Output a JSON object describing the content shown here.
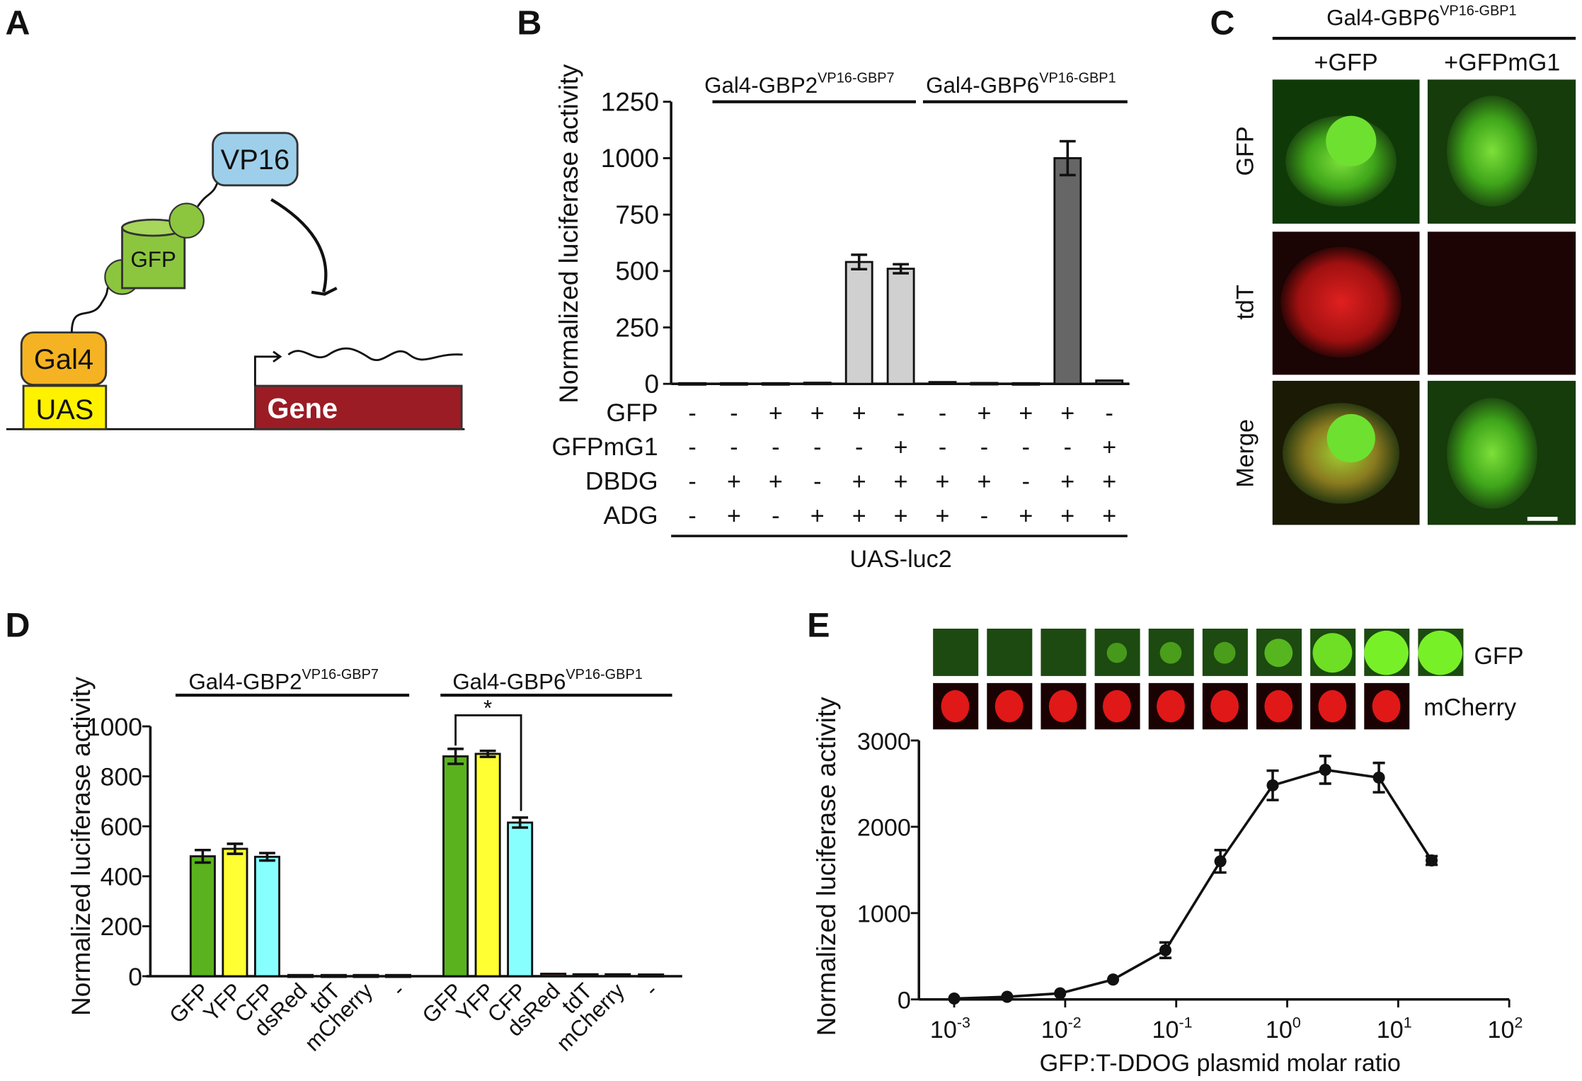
{
  "panels": {
    "a": "A",
    "b": "B",
    "c": "C",
    "d": "D",
    "e": "E"
  },
  "panel_a": {
    "vp16": "VP16",
    "gfp": "GFP",
    "gal4": "Gal4",
    "uas": "UAS",
    "gene": "Gene",
    "colors": {
      "vp16": "#9ecfea",
      "gfp": "#8cc63f",
      "gal4": "#f5b323",
      "uas": "#fff200",
      "gene": "#9b1c24"
    }
  },
  "chart_data": [
    {
      "id": "B",
      "type": "bar",
      "ylabel": "Normalized luciferase activity",
      "ylim": [
        0,
        1250
      ],
      "yticks": [
        0,
        250,
        500,
        750,
        1000,
        1250
      ],
      "group_labels": [
        {
          "name": "Gal4-GBP2",
          "sup": "VP16-GBP7"
        },
        {
          "name": "Gal4-GBP6",
          "sup": "VP16-GBP1"
        }
      ],
      "values": [
        3,
        3,
        3,
        5,
        540,
        510,
        8,
        4,
        3,
        1000,
        15
      ],
      "errors": [
        0,
        0,
        0,
        0,
        32,
        20,
        0,
        0,
        0,
        75,
        0
      ],
      "fills": [
        "#777",
        "#777",
        "#777",
        "#777",
        "#d0d0d0",
        "#d0d0d0",
        "#555",
        "#555",
        "#555",
        "#666",
        "#666"
      ],
      "rows": [
        {
          "label": "GFP",
          "signs": [
            "-",
            "-",
            "+",
            "+",
            "+",
            "-",
            "-",
            "+",
            "+",
            "+",
            "-"
          ]
        },
        {
          "label": "GFPmG1",
          "signs": [
            "-",
            "-",
            "-",
            "-",
            "-",
            "+",
            "-",
            "-",
            "-",
            "-",
            "+"
          ]
        },
        {
          "label": "DBDG",
          "signs": [
            "-",
            "+",
            "+",
            "-",
            "+",
            "+",
            "+",
            "+",
            "-",
            "+",
            "+"
          ]
        },
        {
          "label": "ADG",
          "signs": [
            "-",
            "+",
            "-",
            "+",
            "+",
            "+",
            "+",
            "-",
            "+",
            "+",
            "+"
          ]
        }
      ],
      "footer": "UAS-luc2"
    },
    {
      "id": "D",
      "type": "bar",
      "ylabel": "Normalized luciferase activity",
      "ylim": [
        0,
        1000
      ],
      "yticks": [
        0,
        200,
        400,
        600,
        800,
        1000
      ],
      "group_labels": [
        {
          "name": "Gal4-GBP2",
          "sup": "VP16-GBP7"
        },
        {
          "name": "Gal4-GBP6",
          "sup": "VP16-GBP1"
        }
      ],
      "categories": [
        "GFP",
        "YFP",
        "CFP",
        "dsRed",
        "tdT",
        "mCherry",
        "-",
        "GFP",
        "YFP",
        "CFP",
        "dsRed",
        "tdT",
        "mCherry",
        "-"
      ],
      "values": [
        480,
        510,
        478,
        5,
        5,
        5,
        5,
        880,
        890,
        615,
        10,
        8,
        8,
        7
      ],
      "errors": [
        25,
        20,
        15,
        0,
        0,
        0,
        0,
        30,
        12,
        20,
        0,
        0,
        0,
        0
      ],
      "fills": [
        "#5ab31e",
        "#ffff33",
        "#88ffff",
        "#4a2a2a",
        "#3a2a2a",
        "#333",
        "#333",
        "#5ab31e",
        "#ffff33",
        "#88ffff",
        "#6a2a2a",
        "#5a2a2a",
        "#3a2a2a",
        "#333"
      ],
      "annotation": "*"
    },
    {
      "id": "E",
      "type": "line",
      "ylabel": "Normalized luciferase activity",
      "xlabel": "GFP:T-DDOG plasmid molar ratio",
      "xscale": "log",
      "xlim": [
        0.001,
        100
      ],
      "ylim": [
        0,
        3000
      ],
      "yticks": [
        0,
        1000,
        2000,
        3000
      ],
      "xticks": [
        {
          "base": "10",
          "exp": "-3"
        },
        {
          "base": "10",
          "exp": "-2"
        },
        {
          "base": "10",
          "exp": "-1"
        },
        {
          "base": "10",
          "exp": "0"
        },
        {
          "base": "10",
          "exp": "1"
        },
        {
          "base": "10",
          "exp": "2"
        }
      ],
      "x": [
        0.001,
        0.003,
        0.009,
        0.027,
        0.08,
        0.25,
        0.74,
        2.2,
        6.7,
        20
      ],
      "y": [
        10,
        30,
        70,
        230,
        570,
        1600,
        2480,
        2660,
        2570,
        1610
      ],
      "errors": [
        0,
        0,
        0,
        0,
        90,
        130,
        170,
        160,
        170,
        50
      ],
      "image_rows": {
        "gfp": "GFP",
        "mcherry": "mCherry"
      },
      "gfp_intensity": [
        0.0,
        0.0,
        0.0,
        0.25,
        0.3,
        0.3,
        0.5,
        0.85,
        1.0,
        1.0
      ]
    }
  ],
  "panel_c": {
    "title": "Gal4-GBP6",
    "title_sup": "VP16-GBP1",
    "columns": [
      "+GFP",
      "+GFPmG1"
    ],
    "rows": [
      "GFP",
      "tdT",
      "Merge"
    ]
  }
}
